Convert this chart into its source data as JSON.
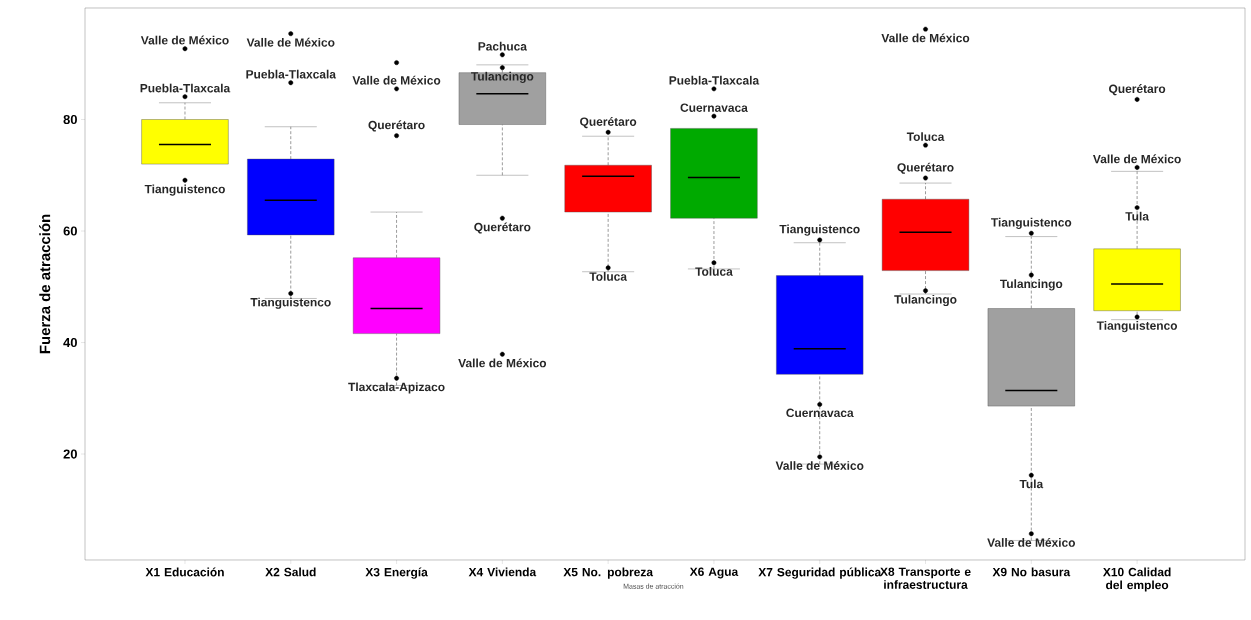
{
  "chart_data": {
    "type": "box",
    "ylabel": "Fuerza de atracción",
    "xlabel": "Masas de atracción",
    "categories": [
      "X1 Educación",
      "X2 Salud",
      "X3 Energía",
      "X4 Vivienda",
      "X5 No. pobreza",
      "X6 Agua",
      "X7 Seguridad pública",
      "X8 Transporte e infraestructura",
      "X9 No basura",
      "X10 Calidad del empleo"
    ],
    "colors": [
      "#ffff00",
      "#0000ff",
      "#ff00ff",
      "#a0a0a0",
      "#ff0000",
      "#00aa00",
      "#0000ff",
      "#ff0000",
      "#a0a0a0",
      "#ffff00"
    ],
    "ylim": [
      1,
      100
    ],
    "yticks": [
      20,
      40,
      60,
      80
    ],
    "boxes": [
      {
        "low": 72,
        "q1": 72,
        "median": 75.5,
        "q3": 80,
        "high": 83
      },
      {
        "low": 47.9,
        "q1": 59.3,
        "median": 65.5,
        "q3": 72.9,
        "high": 78.7
      },
      {
        "low": 32.3,
        "q1": 41.6,
        "median": 46.1,
        "q3": 55.2,
        "high": 63.4
      },
      {
        "low": 70,
        "q1": 79.1,
        "median": 84.6,
        "q3": 88.4,
        "high": 89.8
      },
      {
        "low": 52.7,
        "q1": 63.4,
        "median": 69.8,
        "q3": 71.8,
        "high": 77
      },
      {
        "low": 53.2,
        "q1": 62.3,
        "median": 69.6,
        "q3": 78.4,
        "high": 78.4
      },
      {
        "low": 18.2,
        "q1": 34.3,
        "median": 38.9,
        "q3": 52,
        "high": 57.9
      },
      {
        "low": 48.7,
        "q1": 52.9,
        "median": 59.8,
        "q3": 65.7,
        "high": 68.6
      },
      {
        "low": 4.5,
        "q1": 28.6,
        "median": 31.4,
        "q3": 46.1,
        "high": 59
      },
      {
        "low": 44.1,
        "q1": 45.7,
        "median": 50.5,
        "q3": 56.8,
        "high": 70.7
      }
    ],
    "series": [
      {
        "type": "scatter",
        "color": "#000000",
        "marker": "circle",
        "x": [
          "X1 Educación",
          "X1 Educación",
          "X1 Educación",
          "X2 Salud",
          "X2 Salud",
          "X2 Salud",
          "X3 Energía",
          "X3 Energía",
          "X3 Energía",
          "X3 Energía",
          "X4 Vivienda",
          "X4 Vivienda",
          "X4 Vivienda",
          "X4 Vivienda",
          "X5 No. pobreza",
          "X5 No. pobreza",
          "X6 Agua",
          "X6 Agua",
          "X6 Agua",
          "X7 Seguridad pública",
          "X7 Seguridad pública",
          "X7 Seguridad pública",
          "X8 Transporte e infraestructura",
          "X8 Transporte e infraestructura",
          "X8 Transporte e infraestructura",
          "X8 Transporte e infraestructura",
          "X9 No basura",
          "X9 No basura",
          "X9 No basura",
          "X9 No basura",
          "X10 Calidad del empleo",
          "X10 Calidad del empleo",
          "X10 Calidad del empleo",
          "X10 Calidad del empleo"
        ],
        "values": [
          92.7,
          84.1,
          69.1,
          95.4,
          86.6,
          48.8,
          90.2,
          85.5,
          77.1,
          33.6,
          91.6,
          89.3,
          62.3,
          37.9,
          77.7,
          53.4,
          85.5,
          80.6,
          54.3,
          58.4,
          28.9,
          19.5,
          96.2,
          75.4,
          69.5,
          49.3,
          59.6,
          52.1,
          16.2,
          5.7,
          83.6,
          71.4,
          64.2,
          44.6
        ]
      }
    ],
    "annotations": [
      {
        "text": "Valle de México",
        "x": "X1 Educación",
        "y": 92.7
      },
      {
        "text": "Puebla-Tlaxcala",
        "x": "X1 Educación",
        "y": 84.1
      },
      {
        "text": "Tianguistenco",
        "x": "X1 Educación",
        "y": 69.1
      },
      {
        "text": "Valle de México",
        "x": "X2 Salud",
        "y": 95.4
      },
      {
        "text": "Puebla-Tlaxcala",
        "x": "X2 Salud",
        "y": 86.6
      },
      {
        "text": "Tianguistenco",
        "x": "X2 Salud",
        "y": 48.8
      },
      {
        "text": "Valle de México",
        "x": "X3 Energía",
        "y": 85.5
      },
      {
        "text": "Querétaro",
        "x": "X3 Energía",
        "y": 77.1
      },
      {
        "text": "Tlaxcala-Apizaco",
        "x": "X3 Energía",
        "y": 33.6
      },
      {
        "text": "Pachuca",
        "x": "X4 Vivienda",
        "y": 91.6
      },
      {
        "text": "Tulancingo",
        "x": "X4 Vivienda",
        "y": 89.3
      },
      {
        "text": "Querétaro",
        "x": "X4 Vivienda",
        "y": 62.3
      },
      {
        "text": "Valle de México",
        "x": "X4 Vivienda",
        "y": 37.9
      },
      {
        "text": "Querétaro",
        "x": "X5 No. pobreza",
        "y": 77.7
      },
      {
        "text": "Toluca",
        "x": "X5 No. pobreza",
        "y": 53.4
      },
      {
        "text": "Puebla-Tlaxcala",
        "x": "X6 Agua",
        "y": 85.5
      },
      {
        "text": "Cuernavaca",
        "x": "X6 Agua",
        "y": 80.6
      },
      {
        "text": "Toluca",
        "x": "X6 Agua",
        "y": 54.3
      },
      {
        "text": "Tianguistenco",
        "x": "X7 Seguridad pública",
        "y": 58.4
      },
      {
        "text": "Cuernavaca",
        "x": "X7 Seguridad pública",
        "y": 28.9
      },
      {
        "text": "Valle de México",
        "x": "X7 Seguridad pública",
        "y": 19.5
      },
      {
        "text": "Valle de México",
        "x": "X8 Transporte e infraestructura",
        "y": 96.2
      },
      {
        "text": "Toluca",
        "x": "X8 Transporte e infraestructura",
        "y": 75.4
      },
      {
        "text": "Querétaro",
        "x": "X8 Transporte e infraestructura",
        "y": 69.5
      },
      {
        "text": "Tulancingo",
        "x": "X8 Transporte e infraestructura",
        "y": 49.3
      },
      {
        "text": "Tianguistenco",
        "x": "X9 No basura",
        "y": 59.6
      },
      {
        "text": "Tulancingo",
        "x": "X9 No basura",
        "y": 52.1
      },
      {
        "text": "Tula",
        "x": "X9 No basura",
        "y": 16.2
      },
      {
        "text": "Valle de México",
        "x": "X9 No basura",
        "y": 5.7
      },
      {
        "text": "Querétaro",
        "x": "X10 Calidad del empleo",
        "y": 83.6
      },
      {
        "text": "Valle de México",
        "x": "X10 Calidad del empleo",
        "y": 71.4
      },
      {
        "text": "Tula",
        "x": "X10 Calidad del empleo",
        "y": 64.2
      },
      {
        "text": "Tianguistenco",
        "x": "X10 Calidad del empleo",
        "y": 44.6
      }
    ]
  }
}
